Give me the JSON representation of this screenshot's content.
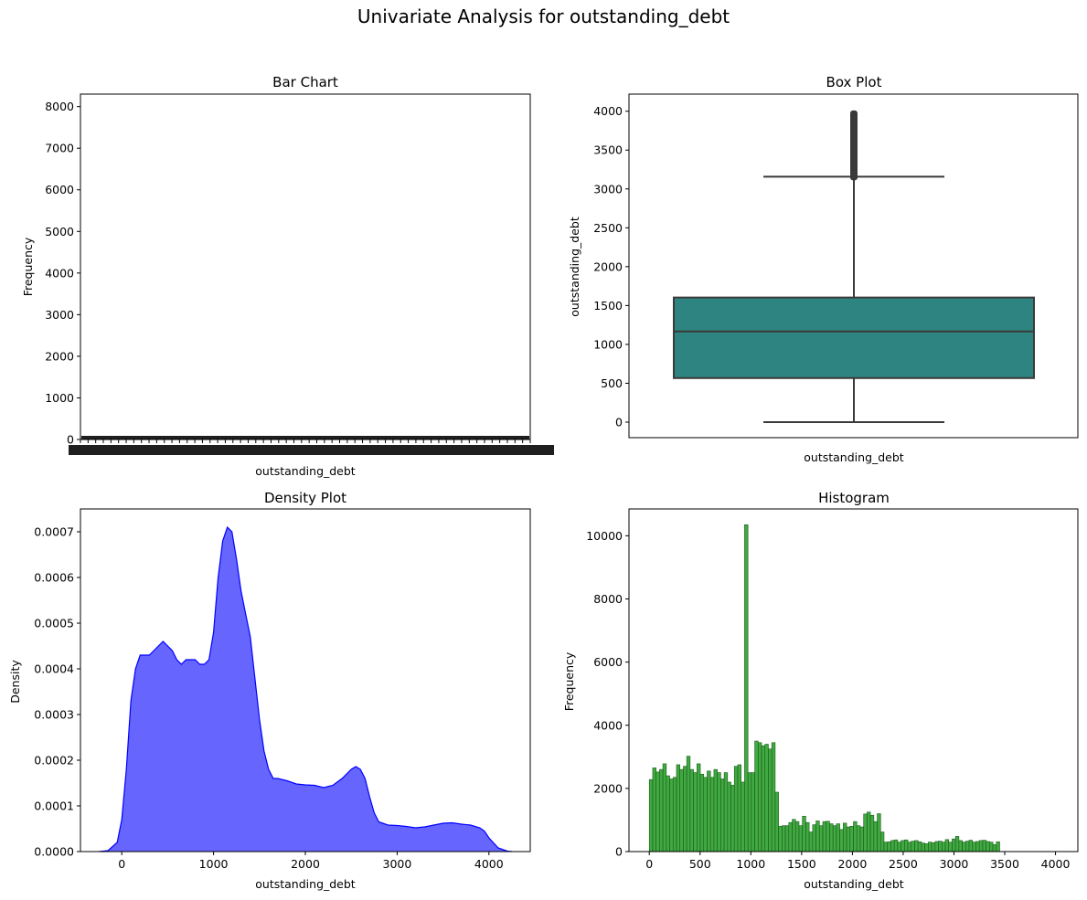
{
  "figure": {
    "title": "Univariate Analysis for outstanding_debt"
  },
  "chart_data": [
    {
      "panel": "bar",
      "type": "bar",
      "title": "Bar Chart",
      "xlabel": "outstanding_debt",
      "ylabel": "Frequency",
      "ylim": [
        0,
        8300
      ],
      "yticks": [
        0,
        1000,
        2000,
        3000,
        4000,
        5000,
        6000,
        7000,
        8000
      ],
      "bar_color": "#1f1f1f",
      "note_values": "bars barely visible near zero; x tick labels overlap into a solid black band"
    },
    {
      "panel": "box",
      "type": "box",
      "title": "Box Plot",
      "xlabel": "outstanding_debt",
      "ylabel": "outstanding_debt",
      "ylim": [
        -200,
        4220
      ],
      "yticks": [
        0,
        500,
        1000,
        1500,
        2000,
        2500,
        3000,
        3500,
        4000
      ],
      "stats": {
        "min": 0,
        "q1": 567,
        "median": 1166,
        "q3": 1603,
        "whisker_high": 3157,
        "outlier_low": 3110,
        "outlier_high": 4010
      },
      "box_color": "#2e8480"
    },
    {
      "panel": "density",
      "type": "area",
      "title": "Density Plot",
      "xlabel": "outstanding_debt",
      "ylabel": "Density",
      "xlim": [
        -450,
        4450
      ],
      "ylim": [
        0,
        0.00075
      ],
      "xticks": [
        0,
        1000,
        2000,
        3000,
        4000
      ],
      "yticks": [
        0.0,
        0.0001,
        0.0002,
        0.0003,
        0.0004,
        0.0005,
        0.0006,
        0.0007
      ],
      "ytick_labels": [
        "0.0000",
        "0.0001",
        "0.0002",
        "0.0003",
        "0.0004",
        "0.0005",
        "0.0006",
        "0.0007"
      ],
      "fill_color": "#6666ff",
      "line_color": "#0000ff",
      "x": [
        -250,
        -150,
        -50,
        0,
        50,
        100,
        150,
        200,
        250,
        300,
        350,
        400,
        450,
        500,
        550,
        600,
        650,
        700,
        750,
        800,
        850,
        900,
        950,
        1000,
        1050,
        1100,
        1150,
        1200,
        1250,
        1300,
        1350,
        1400,
        1450,
        1500,
        1550,
        1600,
        1650,
        1700,
        1800,
        1900,
        2000,
        2100,
        2200,
        2300,
        2400,
        2500,
        2550,
        2600,
        2650,
        2700,
        2750,
        2800,
        2900,
        3000,
        3100,
        3200,
        3300,
        3400,
        3500,
        3600,
        3700,
        3800,
        3900,
        3950,
        4000,
        4100,
        4200,
        4250
      ],
      "y": [
        0.0,
        2e-06,
        2e-05,
        7e-05,
        0.00018,
        0.00033,
        0.0004,
        0.00043,
        0.00043,
        0.00043,
        0.00044,
        0.00045,
        0.00046,
        0.00045,
        0.00044,
        0.00042,
        0.00041,
        0.00042,
        0.00042,
        0.00042,
        0.00041,
        0.00041,
        0.00042,
        0.00048,
        0.0006,
        0.00068,
        0.00071,
        0.0007,
        0.00064,
        0.00057,
        0.00052,
        0.00047,
        0.00038,
        0.00029,
        0.00022,
        0.00018,
        0.00016,
        0.00016,
        0.000155,
        0.000148,
        0.000146,
        0.000145,
        0.00014,
        0.000145,
        0.00016,
        0.00018,
        0.000186,
        0.00018,
        0.00016,
        0.00012,
        8.5e-05,
        6.5e-05,
        5.8e-05,
        5.7e-05,
        5.5e-05,
        5.2e-05,
        5.4e-05,
        5.8e-05,
        6.2e-05,
        6.3e-05,
        6e-05,
        5.8e-05,
        5.2e-05,
        4.5e-05,
        3e-05,
        8e-06,
        1e-06,
        0.0
      ]
    },
    {
      "panel": "hist",
      "type": "bar",
      "title": "Histogram",
      "xlabel": "outstanding_debt",
      "ylabel": "Frequency",
      "xlim": [
        -200,
        4220
      ],
      "ylim": [
        0,
        10850
      ],
      "xticks": [
        0,
        500,
        1000,
        1500,
        2000,
        2500,
        3000,
        3500,
        4000
      ],
      "yticks": [
        0,
        2000,
        4000,
        6000,
        8000,
        10000
      ],
      "bar_color": "#2ca02c",
      "edge_color": "#1a5c1a",
      "bin_start": 0,
      "bin_width": 33.5,
      "values": [
        2280,
        2650,
        2520,
        2600,
        2780,
        2400,
        2300,
        2350,
        2750,
        2600,
        2700,
        3020,
        2600,
        2500,
        2780,
        2450,
        2350,
        2550,
        2350,
        2600,
        2500,
        2300,
        2500,
        2200,
        2100,
        2700,
        2750,
        2200,
        10350,
        2500,
        2500,
        3500,
        3450,
        3350,
        3400,
        3250,
        3450,
        1880,
        800,
        820,
        820,
        920,
        1020,
        950,
        820,
        1120,
        920,
        620,
        850,
        970,
        820,
        950,
        960,
        880,
        820,
        880,
        700,
        900,
        780,
        800,
        950,
        820,
        780,
        1190,
        1250,
        1150,
        950,
        1200,
        620,
        300,
        310,
        350,
        370,
        300,
        350,
        370,
        300,
        330,
        350,
        310,
        270,
        250,
        300,
        280,
        320,
        330,
        300,
        380,
        300,
        400,
        480,
        350,
        300,
        330,
        360,
        300,
        320,
        350,
        360,
        320,
        300,
        220,
        310
      ]
    }
  ]
}
